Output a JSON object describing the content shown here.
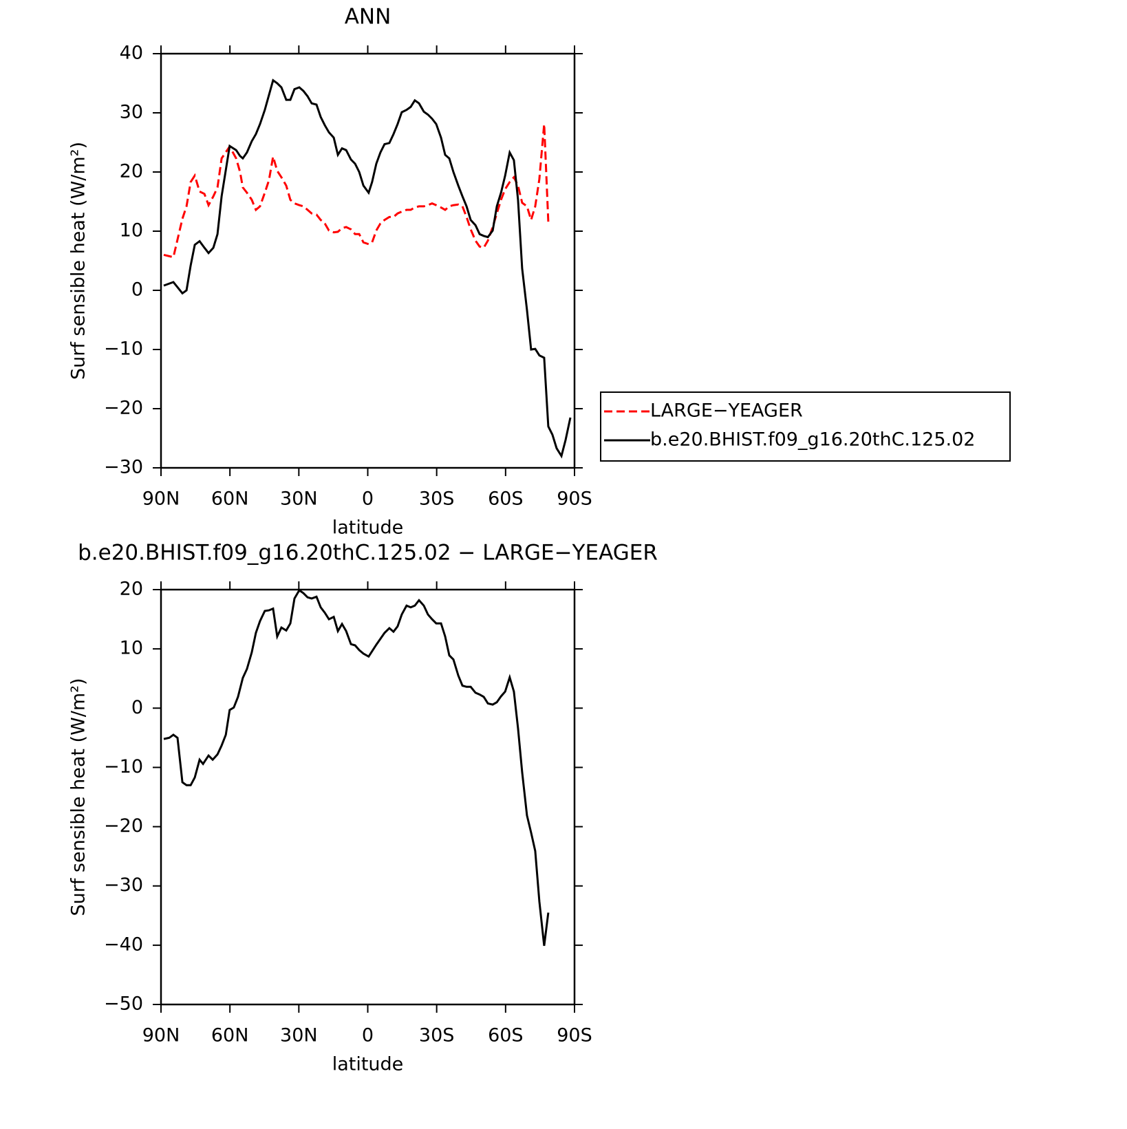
{
  "chart_data": [
    {
      "type": "line",
      "title": "ANN",
      "xlabel": "latitude",
      "ylabel": "Surf sensible heat (W/m²)",
      "x": [
        88.8,
        84.6,
        80.7,
        78.9,
        77.1,
        75.3,
        73.2,
        71.1,
        69.3,
        67.2,
        65.4,
        63.6,
        60.1,
        57.3,
        55.6,
        54.4,
        52.6,
        50.5,
        48.7,
        46.9,
        44.8,
        43.0,
        41.2,
        39.4,
        37.6,
        35.5,
        33.7,
        31.9,
        29.8,
        28.0,
        26.2,
        24.4,
        22.3,
        20.5,
        18.7,
        16.9,
        14.8,
        13.0,
        11.2,
        9.4,
        7.3,
        5.5,
        3.7,
        1.9,
        -0.4,
        -1.9,
        -3.7,
        -5.5,
        -7.3,
        -9.4,
        -11.2,
        -13.0,
        -14.8,
        -16.9,
        -18.7,
        -20.5,
        -22.3,
        -24.4,
        -26.2,
        -28.0,
        -29.8,
        -31.9,
        -33.7,
        -35.5,
        -37.3,
        -39.4,
        -41.2,
        -43.0,
        -44.8,
        -46.9,
        -48.7,
        -50.5,
        -52.3,
        -54.4,
        -56.2,
        -58.0,
        -59.8,
        -61.8,
        -63.6,
        -65.4,
        -67.2,
        -69.3,
        -71.1,
        -72.9,
        -74.7,
        -76.8,
        -78.6,
        -80.4,
        -82.2,
        -84.3,
        -86.1,
        -88.2
      ],
      "series": [
        {
          "name": "LARGE−YEAGER",
          "color": "#ff0000",
          "dash": "dashed",
          "values": [
            6.0,
            5.6,
            12.1,
            14.2,
            18.3,
            19.4,
            16.7,
            16.3,
            14.4,
            15.9,
            17.4,
            22.3,
            24.3,
            22.3,
            20.0,
            17.4,
            16.5,
            15.3,
            13.6,
            14.2,
            16.5,
            18.6,
            22.6,
            20.2,
            19.1,
            17.7,
            15.3,
            14.7,
            14.4,
            14.2,
            13.6,
            13.0,
            12.8,
            11.9,
            11.3,
            10.1,
            9.8,
            9.9,
            10.5,
            10.7,
            10.3,
            9.5,
            9.5,
            8.1,
            7.8,
            8.1,
            10.1,
            11.3,
            11.9,
            12.4,
            12.4,
            13.0,
            13.3,
            13.6,
            13.6,
            14.0,
            14.2,
            14.2,
            14.4,
            14.7,
            14.4,
            14.0,
            13.6,
            14.2,
            14.4,
            14.5,
            14.2,
            12.4,
            10.3,
            8.4,
            7.4,
            7.2,
            8.4,
            10.7,
            13.0,
            15.3,
            17.1,
            18.3,
            19.1,
            17.7,
            14.8,
            14.2,
            11.9,
            14.2,
            18.8,
            28.1,
            11.6,
            null,
            null,
            null,
            null,
            null
          ]
        },
        {
          "name": "b.e20.BHIST.f09_g16.20thC.125.02",
          "color": "#000000",
          "dash": "solid",
          "values": [
            0.8,
            1.4,
            -0.5,
            0.0,
            4.2,
            7.7,
            8.3,
            7.2,
            6.3,
            7.2,
            9.5,
            15.9,
            24.4,
            23.7,
            22.7,
            22.3,
            23.3,
            25.2,
            26.4,
            28.1,
            30.5,
            33.0,
            35.5,
            35.0,
            34.3,
            32.2,
            32.2,
            34.0,
            34.3,
            33.7,
            32.8,
            31.6,
            31.4,
            29.3,
            27.9,
            26.7,
            25.8,
            22.9,
            24.0,
            23.7,
            22.1,
            21.4,
            20.0,
            17.7,
            16.5,
            18.3,
            21.4,
            23.3,
            24.7,
            24.9,
            26.4,
            28.1,
            30.1,
            30.5,
            31.0,
            32.1,
            31.6,
            30.2,
            29.7,
            29.0,
            28.1,
            25.8,
            22.9,
            22.3,
            20.0,
            17.7,
            15.9,
            14.2,
            11.9,
            11.0,
            9.5,
            9.2,
            9.0,
            10.1,
            14.2,
            16.5,
            19.4,
            23.3,
            22.0,
            15.3,
            3.7,
            -3.3,
            -10.0,
            -9.9,
            -11.0,
            -11.4,
            -23.0,
            -24.4,
            -26.7,
            -28.0,
            -25.3,
            -21.5
          ]
        }
      ],
      "xlim": [
        90,
        -90
      ],
      "xticks": [
        {
          "value": 90,
          "label": "90N"
        },
        {
          "value": 60,
          "label": "60N"
        },
        {
          "value": 30,
          "label": "30N"
        },
        0,
        {
          "value": -30,
          "label": "30S"
        },
        {
          "value": -60,
          "label": "60S"
        },
        {
          "value": -90,
          "label": "90S"
        }
      ],
      "ylim": [
        -30,
        40
      ],
      "yticks": [
        {
          "value": -30,
          "label": "−30"
        },
        {
          "value": -20,
          "label": "−20"
        },
        {
          "value": -10,
          "label": "−10"
        },
        0,
        10,
        20,
        30,
        40
      ],
      "legend": "right"
    },
    {
      "type": "line",
      "title": "b.e20.BHIST.f09_g16.20thC.125.02 − LARGE−YEAGER",
      "xlabel": "latitude",
      "ylabel": "Surf sensible heat (W/m²)",
      "x": [
        88.8,
        86.4,
        84.6,
        82.8,
        80.7,
        78.9,
        77.1,
        75.3,
        73.2,
        71.7,
        69.3,
        67.5,
        65.4,
        63.6,
        61.8,
        60.1,
        58.3,
        56.5,
        54.4,
        52.6,
        50.5,
        48.7,
        46.9,
        44.8,
        43.0,
        41.2,
        39.4,
        37.6,
        35.5,
        33.7,
        31.9,
        29.8,
        28.0,
        26.2,
        24.4,
        22.3,
        20.5,
        18.7,
        16.9,
        14.8,
        13.0,
        11.2,
        9.4,
        7.3,
        5.5,
        3.7,
        1.9,
        -0.4,
        -1.9,
        -3.7,
        -5.5,
        -7.3,
        -9.4,
        -11.2,
        -13.0,
        -14.8,
        -16.9,
        -18.7,
        -20.5,
        -22.3,
        -24.4,
        -26.2,
        -28.0,
        -29.8,
        -31.9,
        -33.7,
        -35.5,
        -37.3,
        -39.4,
        -41.2,
        -43.0,
        -44.8,
        -46.9,
        -48.7,
        -50.5,
        -52.3,
        -54.4,
        -56.2,
        -58.0,
        -59.8,
        -61.8,
        -63.6,
        -65.4,
        -67.2,
        -69.3,
        -71.1,
        -72.9,
        -74.7,
        -76.8,
        -78.6
      ],
      "values": [
        -5.2,
        -5.0,
        -4.5,
        -5.0,
        -12.5,
        -13.0,
        -13.0,
        -11.7,
        -8.7,
        -9.4,
        -8.0,
        -8.7,
        -7.8,
        -6.3,
        -4.5,
        -0.3,
        0.1,
        1.9,
        5.1,
        6.6,
        9.4,
        12.7,
        14.7,
        16.4,
        16.5,
        16.8,
        12.1,
        13.6,
        13.1,
        14.3,
        18.5,
        19.9,
        19.4,
        18.7,
        18.5,
        18.8,
        17.0,
        16.1,
        15.0,
        15.4,
        13.0,
        14.2,
        13.0,
        10.8,
        10.6,
        9.8,
        9.2,
        8.7,
        9.6,
        10.7,
        11.7,
        12.7,
        13.5,
        12.9,
        13.8,
        15.8,
        17.3,
        17.0,
        17.3,
        18.2,
        17.3,
        15.8,
        15.0,
        14.3,
        14.3,
        12.1,
        8.9,
        8.2,
        5.5,
        3.8,
        3.6,
        3.6,
        2.6,
        2.3,
        1.9,
        0.8,
        0.6,
        1.0,
        2.0,
        2.8,
        5.2,
        2.8,
        -3.4,
        -10.8,
        -18.1,
        -21.0,
        -24.1,
        -32.6,
        -40.1,
        -34.5
      ],
      "color": "#000000",
      "xlim": [
        90,
        -90
      ],
      "xticks": [
        {
          "value": 90,
          "label": "90N"
        },
        {
          "value": 60,
          "label": "60N"
        },
        {
          "value": 30,
          "label": "30N"
        },
        0,
        {
          "value": -30,
          "label": "30S"
        },
        {
          "value": -60,
          "label": "60S"
        },
        {
          "value": -90,
          "label": "90S"
        }
      ],
      "ylim": [
        -50,
        20
      ],
      "yticks": [
        {
          "value": -50,
          "label": "−50"
        },
        {
          "value": -40,
          "label": "−40"
        },
        {
          "value": -30,
          "label": "−30"
        },
        {
          "value": -20,
          "label": "−20"
        },
        {
          "value": -10,
          "label": "−10"
        },
        0,
        10,
        20
      ]
    }
  ]
}
